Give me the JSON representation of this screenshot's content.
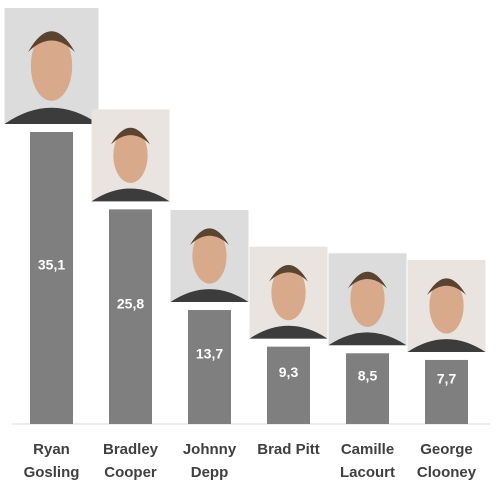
{
  "chart_data": {
    "type": "bar",
    "categories": [
      "Ryan Gosling",
      "Bradley Cooper",
      "Johnny Depp",
      "Brad Pitt",
      "Camille Lacourt",
      "George Clooney"
    ],
    "values": [
      35.1,
      25.8,
      13.7,
      9.3,
      8.5,
      7.7
    ],
    "value_labels": [
      "35,1",
      "25,8",
      "13,7",
      "9,3",
      "8,5",
      "7,7"
    ],
    "color": "#7f7f7f"
  }
}
